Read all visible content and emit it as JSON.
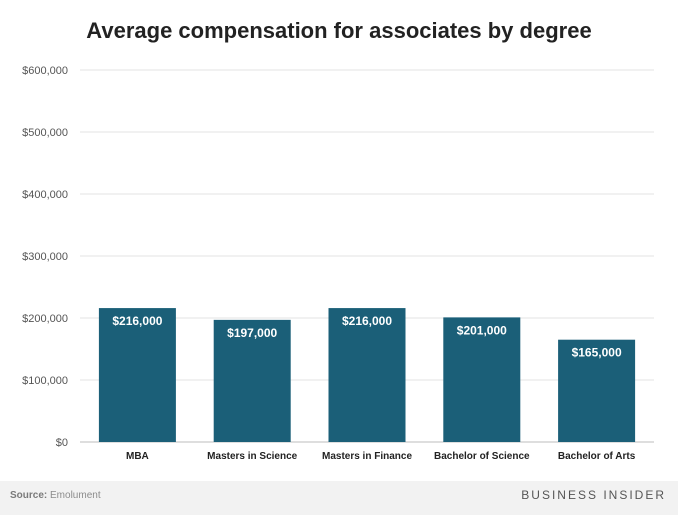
{
  "chart_data": {
    "type": "bar",
    "title": "Average compensation for associates by degree",
    "categories": [
      "MBA",
      "Masters in Science",
      "Masters in Finance",
      "Bachelor of Science",
      "Bachelor of Arts"
    ],
    "values": [
      216000,
      197000,
      216000,
      201000,
      165000
    ],
    "value_labels": [
      "$216,000",
      "$197,000",
      "$216,000",
      "$201,000",
      "$165,000"
    ],
    "ylim": [
      0,
      600000
    ],
    "y_ticks": [
      0,
      100000,
      200000,
      300000,
      400000,
      500000,
      600000
    ],
    "y_tick_labels": [
      "$0",
      "$100,000",
      "$200,000",
      "$300,000",
      "$400,000",
      "$500,000",
      "$600,000"
    ],
    "xlabel": "",
    "ylabel": "",
    "grid": true,
    "legend": "none",
    "colors": {
      "bar": "#1b5f78",
      "grid": "#e3e3e3",
      "label": "#ffffff"
    }
  },
  "footer": {
    "source_label": "Source:",
    "source_text": "Emolument",
    "brand": "BUSINESS INSIDER"
  }
}
